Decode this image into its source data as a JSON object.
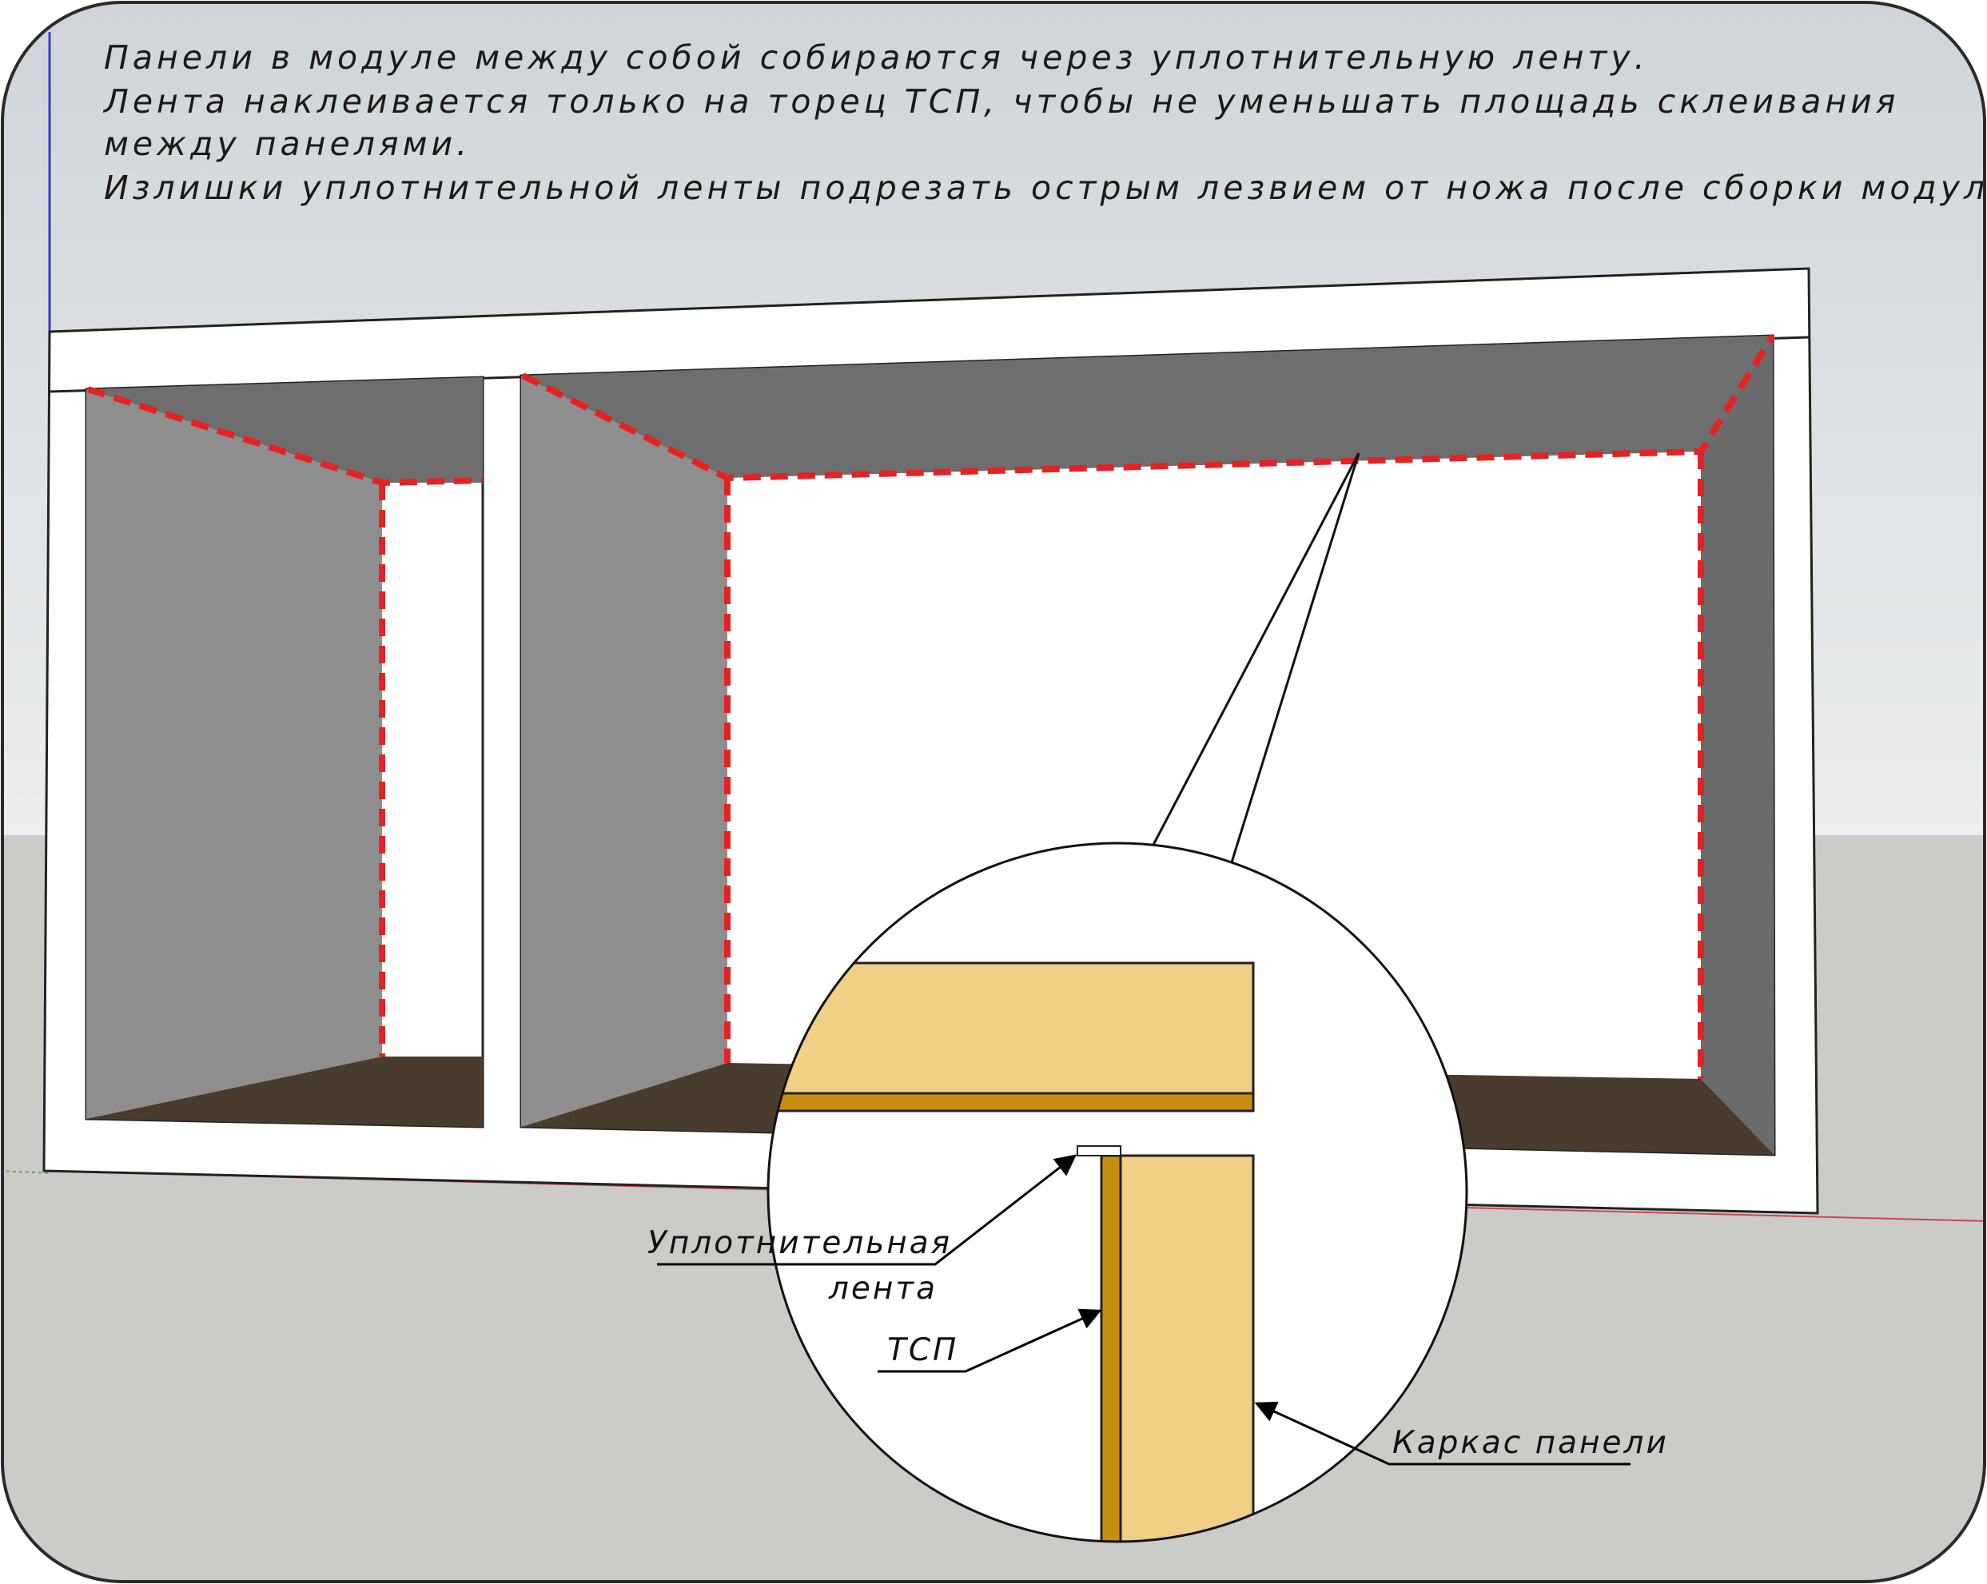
{
  "notes": [
    "Панели в модуле между собой собираются через уплотнительную ленту.",
    "Лента наклеивается только на торец ТСП, чтобы не уменьшать площадь склеивания",
    "между панелями.",
    "Излишки уплотнительной ленты подрезать острым лезвием от ножа после сборки модуля."
  ],
  "callouts": {
    "tape_line1": "Уплотнительная",
    "tape_line2": "лента",
    "tsp": "ТСП",
    "frame": "Каркас панели"
  },
  "colors": {
    "sky": "#cfd5d9",
    "ground": "#cbcbc8",
    "panel_white": "#ffffff",
    "wall_gray": "#8e8e8e",
    "ceiling_gray": "#6e6e6e",
    "floor_brown": "#4a3c2c",
    "tape_red": "#e52222",
    "wood_light": "#f0cf86",
    "wood_dark": "#c98d10"
  }
}
